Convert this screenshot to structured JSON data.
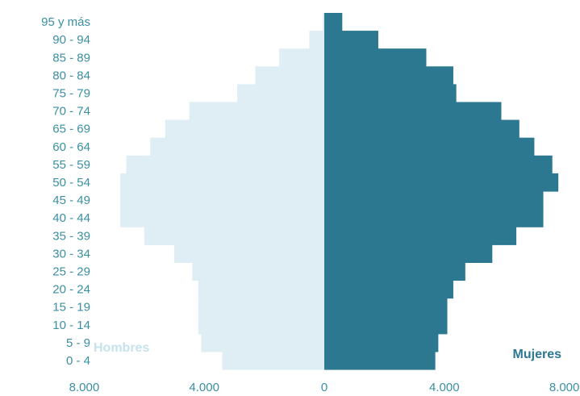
{
  "chart_data": {
    "type": "bar",
    "orientation": "horizontal",
    "layout": "population-pyramid",
    "categories": [
      "0 - 4",
      "5 - 9",
      "10 - 14",
      "15 - 19",
      "20 - 24",
      "25 - 29",
      "30 - 34",
      "35 - 39",
      "40 - 44",
      "45 - 49",
      "50 - 54",
      "55 - 59",
      "60 - 64",
      "65 - 69",
      "70 - 74",
      "75 - 79",
      "80 - 84",
      "85 - 89",
      "90 - 94",
      "95 y más"
    ],
    "series": [
      {
        "name": "Hombres",
        "side": "left",
        "color": "#deeef4",
        "values": [
          3400,
          4100,
          4200,
          4200,
          4200,
          4400,
          5000,
          6000,
          6800,
          6800,
          6800,
          6600,
          5800,
          5300,
          4500,
          2900,
          2300,
          1500,
          500,
          50
        ]
      },
      {
        "name": "Mujeres",
        "side": "right",
        "color": "#2c7890",
        "values": [
          3700,
          3800,
          4100,
          4100,
          4300,
          4700,
          5600,
          6400,
          7300,
          7300,
          7800,
          7600,
          7000,
          6500,
          5900,
          4400,
          4300,
          3400,
          1800,
          600
        ]
      }
    ],
    "x_ticks": [
      {
        "value": -8000,
        "label": "8.000"
      },
      {
        "value": -4000,
        "label": "4.000"
      },
      {
        "value": 0,
        "label": "0"
      },
      {
        "value": 4000,
        "label": "4.000"
      },
      {
        "value": 8000,
        "label": "8.000"
      }
    ],
    "xlim": [
      -8000,
      8000
    ],
    "title": "",
    "xlabel": "",
    "ylabel": "",
    "grid": false,
    "legend": "inline-bottom",
    "label_color": "#3b8fa2"
  }
}
